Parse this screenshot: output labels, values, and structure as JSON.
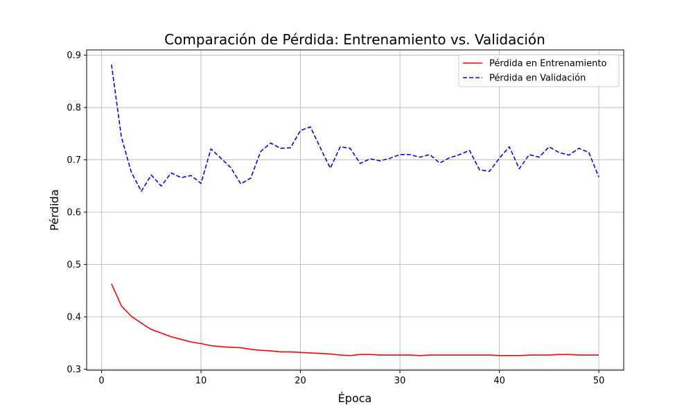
{
  "chart_data": {
    "type": "line",
    "title": "Comparación de Pérdida: Entrenamiento vs. Validación",
    "xlabel": "Época",
    "ylabel": "Pérdida",
    "xlim": [
      -1.5,
      52.5
    ],
    "ylim": [
      0.298,
      0.91
    ],
    "xticks": [
      0,
      10,
      20,
      30,
      40,
      50
    ],
    "yticks": [
      0.3,
      0.4,
      0.5,
      0.6,
      0.7,
      0.8,
      0.9
    ],
    "grid": true,
    "legend_position": "top-right",
    "x": [
      1,
      2,
      3,
      4,
      5,
      6,
      7,
      8,
      9,
      10,
      11,
      12,
      13,
      14,
      15,
      16,
      17,
      18,
      19,
      20,
      21,
      22,
      23,
      24,
      25,
      26,
      27,
      28,
      29,
      30,
      31,
      32,
      33,
      34,
      35,
      36,
      37,
      38,
      39,
      40,
      41,
      42,
      43,
      44,
      45,
      46,
      47,
      48,
      49,
      50
    ],
    "series": [
      {
        "name": "Pérdida en Entrenamiento",
        "color": "#ff0000",
        "style": "solid",
        "values": [
          0.463,
          0.421,
          0.401,
          0.388,
          0.376,
          0.369,
          0.362,
          0.357,
          0.352,
          0.349,
          0.345,
          0.343,
          0.342,
          0.341,
          0.338,
          0.336,
          0.335,
          0.333,
          0.333,
          0.332,
          0.331,
          0.33,
          0.329,
          0.327,
          0.326,
          0.328,
          0.328,
          0.327,
          0.327,
          0.327,
          0.327,
          0.326,
          0.327,
          0.327,
          0.327,
          0.327,
          0.327,
          0.327,
          0.327,
          0.326,
          0.326,
          0.326,
          0.327,
          0.327,
          0.327,
          0.328,
          0.328,
          0.327,
          0.327,
          0.327
        ]
      },
      {
        "name": "Pérdida en Validación",
        "color": "#0000ff",
        "style": "dashed",
        "values": [
          0.882,
          0.743,
          0.676,
          0.64,
          0.671,
          0.65,
          0.675,
          0.666,
          0.67,
          0.655,
          0.721,
          0.703,
          0.685,
          0.654,
          0.665,
          0.716,
          0.732,
          0.722,
          0.723,
          0.756,
          0.763,
          0.723,
          0.684,
          0.725,
          0.722,
          0.693,
          0.702,
          0.698,
          0.703,
          0.71,
          0.71,
          0.705,
          0.71,
          0.694,
          0.704,
          0.71,
          0.718,
          0.681,
          0.678,
          0.703,
          0.725,
          0.683,
          0.71,
          0.705,
          0.725,
          0.714,
          0.709,
          0.722,
          0.714,
          0.667
        ]
      }
    ]
  }
}
